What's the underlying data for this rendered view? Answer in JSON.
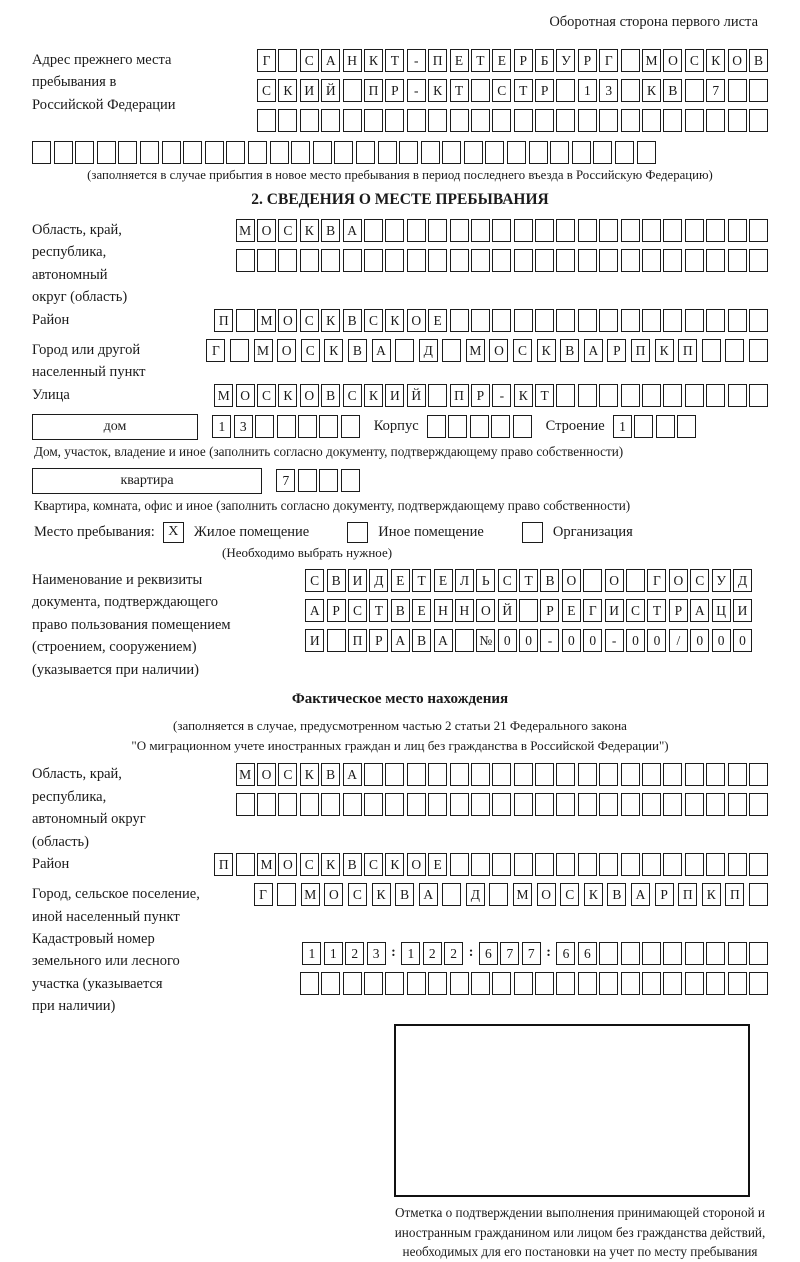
{
  "header": {
    "note": "Оборотная сторона первого листа"
  },
  "prev_address": {
    "label": "Адрес прежнего места пребывания в Российской Федерации",
    "rows": [
      "Г_САНКТ-ПЕТЕРБУРГ_МОСКОВ",
      "СКИЙ_ПР-КТ_СТР_13_КВ_7__",
      "________________________"
    ],
    "full_row": "_____________________________",
    "note": "(заполняется в случае прибытия в новое место пребывания в период последнего въезда в Российскую Федерацию)"
  },
  "section2": {
    "title": "2. СВЕДЕНИЯ О МЕСТЕ ПРЕБЫВАНИЯ",
    "region": {
      "label": "Область, край, республика, автономный округ (область)",
      "rows": [
        "МОСКВА___________________",
        "_________________________"
      ]
    },
    "district": {
      "label": "Район",
      "row": "П_МОСКВСКОЕ_______________"
    },
    "city": {
      "label": "Город или другой населенный пункт",
      "row": "Г_МОСКВА_Д_МОСКВАРПКП___"
    },
    "street": {
      "label": "Улица",
      "row": "МОСКОВСКИЙ_ПР-КТ__________"
    },
    "house": {
      "rect_label": "дом",
      "cells": "13_____",
      "korpus_label": "Корпус",
      "korpus_cells": "_____",
      "stroenie_label": "Строение",
      "stroenie_cells": "1___",
      "caption": "Дом, участок, владение и иное (заполнить согласно документу, подтверждающему право собственности)"
    },
    "apartment": {
      "rect_label": "квартира",
      "cells": "7___",
      "caption": "Квартира, комната, офис и иное (заполнить согласно документу, подтверждающему право собственности)"
    },
    "stay_type": {
      "label": "Место пребывания:",
      "options": [
        {
          "label": "Жилое помещение",
          "mark": "X"
        },
        {
          "label": "Иное помещение",
          "mark": ""
        },
        {
          "label": "Организация",
          "mark": ""
        }
      ],
      "note": "(Необходимо выбрать нужное)"
    },
    "document": {
      "label": "Наименование и реквизиты документа, подтверждающего право пользования помещением (строением, сооружением) (указывается при наличии)",
      "rows": [
        "СВИДЕТЕЛЬСТВО_О_ГОСУД",
        "АРСТВЕННОЙ_РЕГИСТРАЦИ",
        "И_ПРАВА_№00-00-00/000"
      ]
    }
  },
  "actual_location": {
    "title": "Фактическое место нахождения",
    "note_line1": "(заполняется в случае, предусмотренном частью 2 статьи 21 Федерального закона",
    "note_line2": "\"О миграционном учете иностранных граждан и лиц без гражданства в Российской Федерации\")",
    "region": {
      "label": "Область, край, республика, автономный округ (область)",
      "rows": [
        "МОСКВА___________________",
        "_________________________"
      ]
    },
    "district": {
      "label": "Район",
      "row": "П_МОСКВСКОЕ_______________"
    },
    "city": {
      "label": "Город, сельское поселение, иной населенный пункт",
      "row": "Г_МОСКВА_Д_МОСКВАРПКП_"
    },
    "cadastre": {
      "label": "Кадастровый номер земельного или лесного участка (указывается при наличии)",
      "rows": [
        "1123:122:677:66________",
        "______________________"
      ]
    }
  },
  "footer": {
    "stamp_caption": "Отметка о подтверждении выполнения принимающей стороной и иностранным гражданином или лицом без гражданства действий, необходимых для его постановки на учет по месту пребывания"
  }
}
